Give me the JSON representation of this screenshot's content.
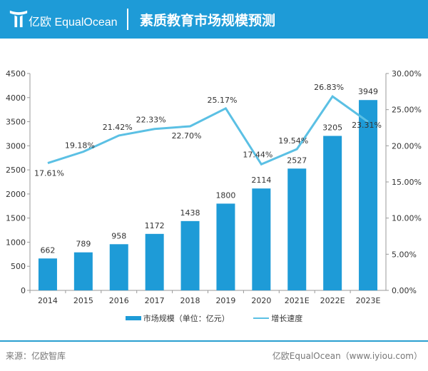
{
  "header": {
    "brand": "亿欧 EqualOcean",
    "title": "素质教育市场规模预测"
  },
  "colors": {
    "bar": "#1e9bd7",
    "line": "#5bc0e4",
    "header": "#1e9bd7"
  },
  "chart_data": {
    "type": "bar+line",
    "categories": [
      "2014",
      "2015",
      "2016",
      "2017",
      "2018",
      "2019",
      "2020",
      "2021E",
      "2022E",
      "2023E"
    ],
    "series": [
      {
        "name": "市场规模（单位：亿元）",
        "type": "bar",
        "axis": "left",
        "values": [
          662,
          789,
          958,
          1172,
          1438,
          1800,
          2114,
          2527,
          3205,
          3949
        ]
      },
      {
        "name": "增长速度",
        "type": "line",
        "axis": "right",
        "values": [
          17.61,
          19.18,
          21.42,
          22.33,
          22.7,
          25.17,
          17.44,
          19.54,
          26.83,
          23.31
        ],
        "labels": [
          "17.61%",
          "19.18%",
          "21.42%",
          "22.33%",
          "22.70%",
          "25.17%",
          "17.44%",
          "19.54%",
          "26.83%",
          "23.31%"
        ]
      }
    ],
    "ylim": [
      0,
      4500
    ],
    "yticks": [
      "0",
      "500",
      "1000",
      "1500",
      "2000",
      "2500",
      "3000",
      "3500",
      "4000",
      "4500"
    ],
    "y2lim": [
      0,
      30
    ],
    "y2ticks": [
      "0.00%",
      "5.00%",
      "10.00%",
      "15.00%",
      "20.00%",
      "25.00%",
      "30.00%"
    ],
    "legend": "bottom"
  },
  "legend": {
    "bar": "市场规模（单位：亿元）",
    "line": "增长速度"
  },
  "footer": {
    "source": "来源：亿欧智库",
    "credit": "亿欧EqualOcean（www.iyiou.com）"
  }
}
